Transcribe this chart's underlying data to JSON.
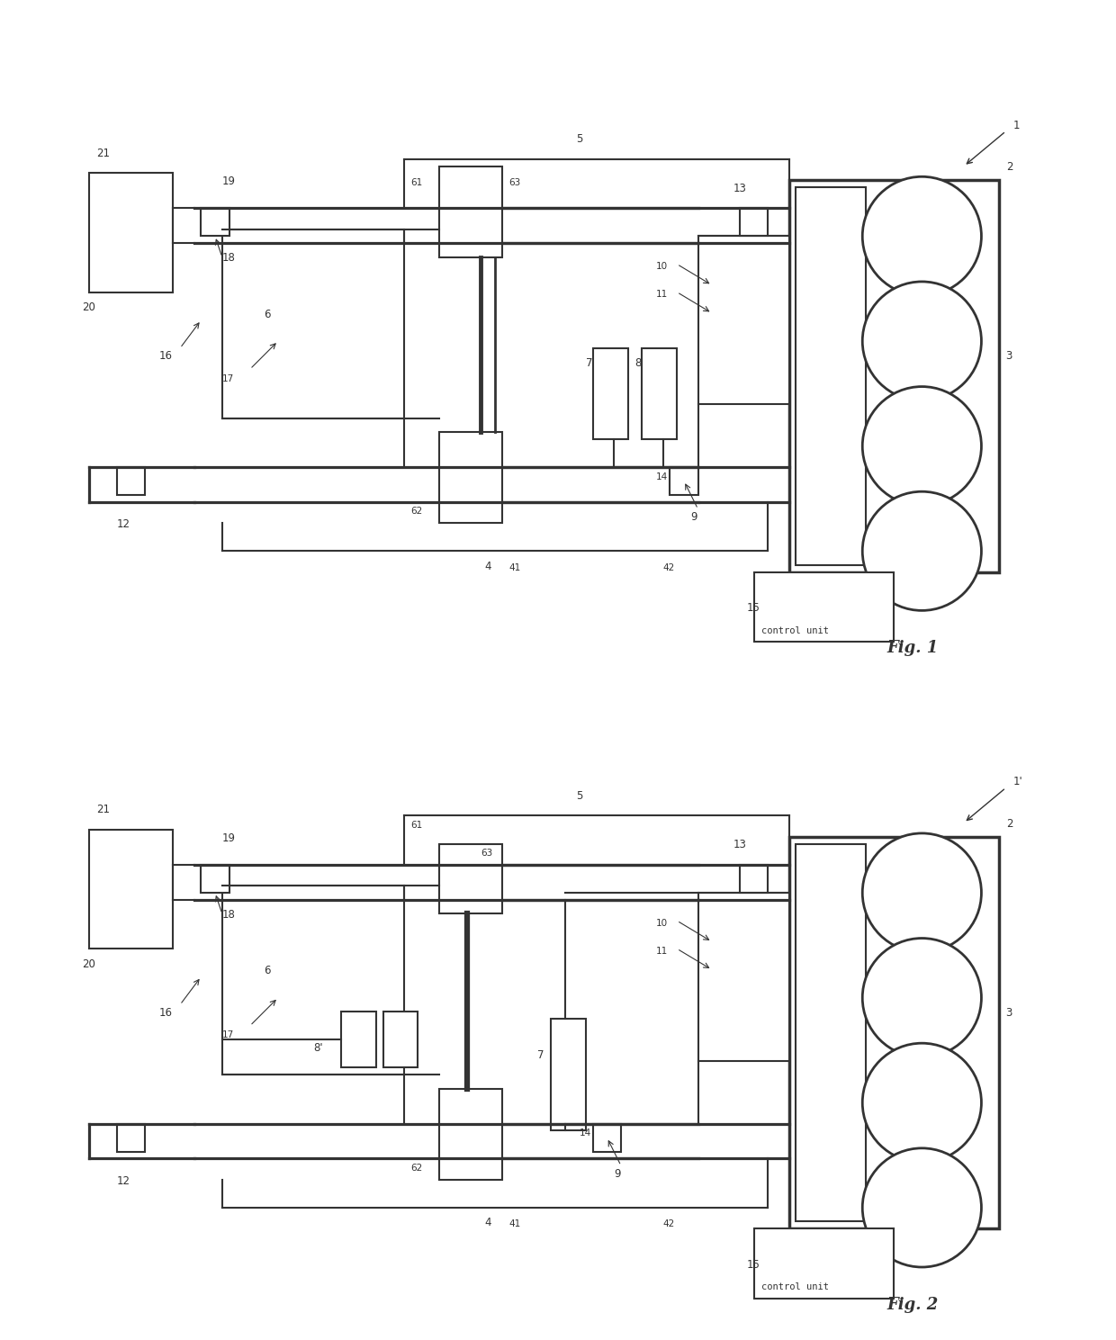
{
  "bg_color": "#ffffff",
  "lc": "#333333",
  "lw": 1.5,
  "fig_width": 12.4,
  "fig_height": 14.89,
  "fig1_label": "Fig. 1",
  "fig2_label": "Fig. 2",
  "control_unit_text": "control unit"
}
